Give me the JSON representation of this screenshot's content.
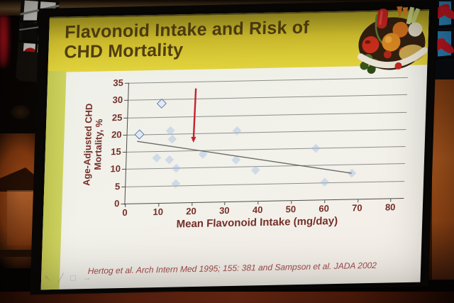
{
  "slide": {
    "title_line1": "Flavonoid Intake and Risk of",
    "title_line2": "CHD Mortality",
    "citation": "Hertog et al. Arch Intern Med 1995; 155: 381 and Sampson et al. JADA 2002",
    "colors": {
      "title_band_gold": "#d4c22e",
      "title_text": "#53400e",
      "axis_text_maroon": "#742e28",
      "citation_red": "#a34a4a",
      "arrow_red": "#c5222e",
      "point_blue": "#9db9e3",
      "sidebar_green": "#c6cb55",
      "trend_gray": "#6b6b68"
    }
  },
  "chart_data": {
    "type": "scatter",
    "title": "",
    "xlabel": "Mean Flavonoid Intake (mg/day)",
    "ylabel": "Age-Adjusted CHD Mortality, %",
    "xlim": [
      0,
      80
    ],
    "ylim": [
      0,
      35
    ],
    "x_ticks": [
      0,
      10,
      20,
      30,
      40,
      50,
      60,
      70,
      80
    ],
    "y_ticks": [
      0,
      5,
      10,
      15,
      20,
      25,
      30,
      35
    ],
    "grid": "horizontal",
    "legend": "none",
    "points": [
      {
        "x": 3.5,
        "y": 20,
        "style": "open"
      },
      {
        "x": 10,
        "y": 29,
        "style": "open"
      },
      {
        "x": 13,
        "y": 21,
        "style": "faint"
      },
      {
        "x": 13.5,
        "y": 18.5,
        "style": "faint"
      },
      {
        "x": 9,
        "y": 13,
        "style": "faint"
      },
      {
        "x": 13,
        "y": 12.5,
        "style": "faint"
      },
      {
        "x": 15,
        "y": 10,
        "style": "faint"
      },
      {
        "x": 15,
        "y": 5.5,
        "style": "faint"
      },
      {
        "x": 23,
        "y": 14,
        "style": "faint"
      },
      {
        "x": 33,
        "y": 20.5,
        "style": "faint"
      },
      {
        "x": 33,
        "y": 12,
        "style": "faint"
      },
      {
        "x": 39,
        "y": 9,
        "style": "faint"
      },
      {
        "x": 57,
        "y": 15,
        "style": "faint"
      },
      {
        "x": 60,
        "y": 5,
        "style": "faint"
      },
      {
        "x": 68,
        "y": 7.5,
        "style": "faint"
      }
    ],
    "trend_line": {
      "x1": 3,
      "y1": 18,
      "x2": 68,
      "y2": 7.5
    },
    "annotation_arrow": {
      "x": 20,
      "y_from": 33,
      "y_to": 17.5,
      "color": "#c5222e"
    }
  },
  "toolbar": {
    "icons": [
      "pointer-icon",
      "pen-icon",
      "slide-box-icon",
      "next-arrow-icon"
    ]
  }
}
